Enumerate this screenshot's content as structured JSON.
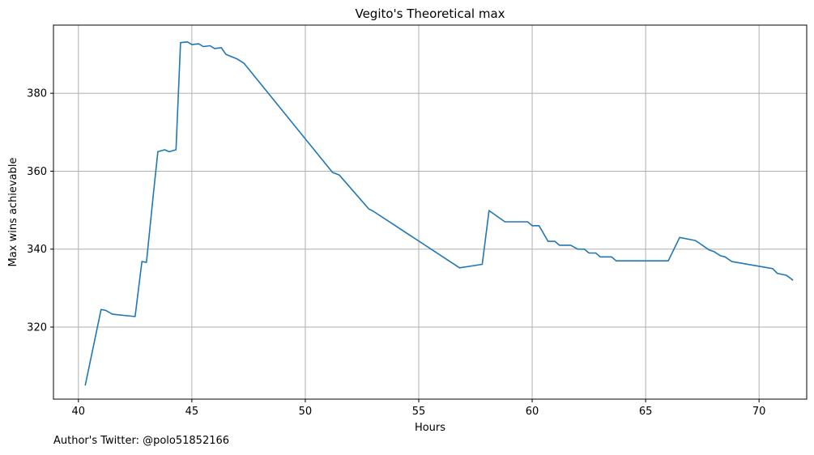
{
  "chart_data": {
    "type": "line",
    "title": "Vegito's Theoretical max",
    "xlabel": "Hours",
    "ylabel": "Max wins achievable",
    "xlim": [
      38.9,
      72.1
    ],
    "ylim": [
      301.5,
      397.5
    ],
    "x_ticks": [
      40,
      45,
      50,
      55,
      60,
      65,
      70
    ],
    "x_tick_labels": [
      "40",
      "45",
      "50",
      "55",
      "60",
      "65",
      "70"
    ],
    "y_ticks": [
      320,
      340,
      360,
      380
    ],
    "y_tick_labels": [
      "320",
      "340",
      "360",
      "380"
    ],
    "grid": true,
    "line_color": "#1f77b4",
    "series": [
      {
        "x": [
          40.3,
          41.0,
          41.2,
          41.5,
          42.5,
          42.8,
          43.0,
          43.3,
          43.5,
          43.8,
          44.0,
          44.3,
          44.5,
          44.8,
          45.0,
          45.3,
          45.5,
          45.8,
          46.0,
          46.3,
          46.5,
          47.0,
          47.3,
          51.2,
          51.5,
          52.8,
          53.0,
          56.8,
          57.8,
          58.1,
          58.8,
          59.8,
          60.0,
          60.3,
          60.7,
          61.0,
          61.2,
          61.7,
          62.0,
          62.3,
          62.5,
          62.8,
          63.0,
          63.5,
          63.7,
          64.0,
          66.0,
          66.5,
          67.2,
          67.8,
          68.0,
          68.3,
          68.5,
          68.8,
          70.6,
          70.8,
          71.2,
          71.5
        ],
        "values": [
          305.0,
          324.5,
          324.3,
          323.3,
          322.7,
          336.8,
          336.6,
          354.0,
          365.0,
          365.5,
          365.0,
          365.5,
          393.0,
          393.2,
          392.5,
          392.7,
          392.0,
          392.2,
          391.5,
          391.7,
          390.0,
          388.8,
          387.7,
          359.7,
          359.0,
          350.3,
          349.7,
          335.2,
          336.1,
          349.9,
          347.0,
          347.0,
          346.0,
          346.0,
          342.0,
          342.0,
          341.0,
          341.0,
          340.0,
          340.0,
          339.0,
          339.0,
          338.0,
          338.0,
          337.0,
          337.0,
          337.0,
          343.0,
          342.2,
          339.8,
          339.4,
          338.3,
          338.0,
          336.8,
          335.0,
          333.8,
          333.3,
          332.0
        ]
      }
    ]
  },
  "footer": {
    "text": "Author's Twitter: @polo51852166"
  }
}
